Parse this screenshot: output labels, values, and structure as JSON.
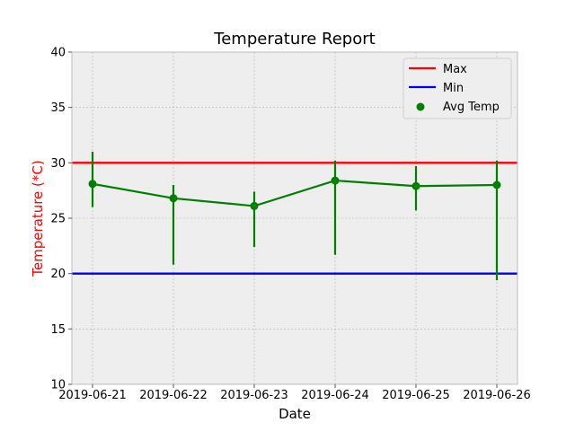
{
  "chart_data": {
    "type": "line",
    "title": "Temperature Report",
    "xlabel": "Date",
    "ylabel": "Temperature (*C)",
    "ylabel_color": "#ff0000",
    "ylim": [
      10,
      40
    ],
    "yticks": [
      10,
      15,
      20,
      25,
      30,
      35,
      40
    ],
    "categories": [
      "2019-06-21",
      "2019-06-22",
      "2019-06-23",
      "2019-06-24",
      "2019-06-25",
      "2019-06-26"
    ],
    "grid": true,
    "legend_position": "top-right",
    "background": "#eeeeee",
    "reference_lines": [
      {
        "name": "Max",
        "value": 30,
        "color": "#ff0000"
      },
      {
        "name": "Min",
        "value": 20,
        "color": "#0000ff"
      }
    ],
    "series": [
      {
        "name": "Avg Temp",
        "color": "#008000",
        "values": [
          28.1,
          26.8,
          26.1,
          28.4,
          27.9,
          28.0
        ],
        "error_low": [
          26.0,
          20.8,
          22.4,
          21.7,
          25.7,
          19.4
        ],
        "error_high": [
          31.0,
          28.0,
          27.4,
          30.2,
          29.7,
          30.2
        ]
      }
    ]
  }
}
